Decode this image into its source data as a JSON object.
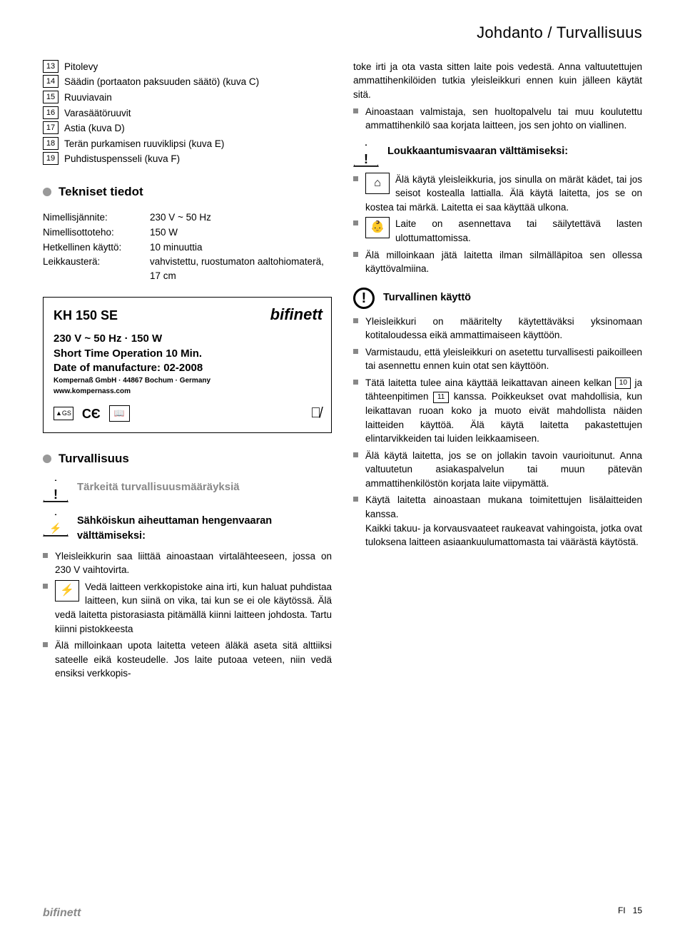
{
  "header": "Johdanto / Turvallisuus",
  "parts": [
    {
      "n": "13",
      "t": "Pitolevy"
    },
    {
      "n": "14",
      "t": "Säädin (portaaton paksuuden säätö) (kuva C)"
    },
    {
      "n": "15",
      "t": "Ruuviavain"
    },
    {
      "n": "16",
      "t": "Varasäätöruuvit"
    },
    {
      "n": "17",
      "t": "Astia (kuva D)"
    },
    {
      "n": "18",
      "t": "Terän purkamisen ruuviklipsi (kuva E)"
    },
    {
      "n": "19",
      "t": "Puhdistuspensseli (kuva F)"
    }
  ],
  "tech_head": "Tekniset tiedot",
  "specs": [
    {
      "l": "Nimellisjännite:",
      "v": "230 V ~ 50 Hz"
    },
    {
      "l": "Nimellisottoteho:",
      "v": "150 W"
    },
    {
      "l": "Hetkellinen käyttö:",
      "v": "10 minuuttia"
    },
    {
      "l": "Leikkausterä:",
      "v": "vahvistettu, ruostumaton aaltohiomaterä, 17 cm"
    }
  ],
  "plate": {
    "model": "KH 150 SE",
    "brand": "bifinett",
    "l1": "230 V ~ 50 Hz · 150 W",
    "l2": "Short Time Operation 10 Min.",
    "l3": "Date of manufacture: 02-2008",
    "l4": "Kompernaß GmbH · 44867 Bochum · Germany",
    "l5": "www.kompernass.com"
  },
  "safety_head": "Turvallisuus",
  "sub1": "Tärkeitä turvallisuusmääräyksiä",
  "sub2": "Sähköiskun aiheuttaman hengenvaaran välttämiseksi:",
  "left_bullets": [
    "Yleisleikkurin saa liittää ainoastaan virtalähteeseen, jossa on 230 V vaihtovirta.",
    "Vedä laitteen verkkopistoke aina irti, kun haluat puhdistaa laitteen, kun siinä on vika, tai kun se ei ole käytössä. Älä vedä laitetta pistorasiasta pitämällä kiinni laitteen johdosta. Tartu kiinni pistokkeesta",
    "Älä milloinkaan upota laitetta veteen äläkä aseta sitä alttiiksi sateelle eikä kosteudelle. Jos laite putoaa veteen, niin vedä ensiksi verkkopis-"
  ],
  "right_top": [
    "toke irti ja ota vasta sitten laite pois vedestä. Anna valtuutettujen ammattihenkilöiden tutkia yleisleikkuri ennen kuin jälleen käytät sitä.",
    "Ainoastaan valmistaja, sen huoltopalvelu tai muu koulutettu ammattihenkilö saa korjata laitteen, jos sen johto on viallinen."
  ],
  "injury_head": "Loukkaantumisvaaran välttämiseksi:",
  "injury": [
    "Älä käytä yleisleikkuria, jos sinulla on märät kädet, tai jos seisot kostealla lattialla. Älä käytä laitetta, jos se on kostea tai märkä. Laitetta ei saa käyttää ulkona.",
    "Laite on asennettava tai säilytettävä lasten ulottumattomissa.",
    "Älä milloinkaan jätä laitetta ilman silmälläpitoa sen ollessa käyttövalmiina."
  ],
  "safe_use_head": "Turvallinen käyttö",
  "safe_use": [
    "Yleisleikkuri on määritelty käytettäväksi yksinomaan kotitaloudessa eikä ammattimaiseen käyttöön.",
    "Varmistaudu, että yleisleikkuri on asetettu turvallisesti paikoilleen tai asennettu ennen kuin otat sen käyttöön.",
    "Tätä laitetta tulee aina käyttää leikattavan aineen kelkan |10| ja tähteenpitimen |11| kanssa. Poikkeukset ovat mahdollisia, kun leikattavan ruoan koko ja muoto eivät mahdollista näiden laitteiden käyttöä. Älä käytä laitetta pakastettujen elintarvikkeiden tai luiden leikkaamiseen.",
    "Älä käytä laitetta, jos se on jollakin tavoin vaurioitunut. Anna valtuutetun asiakaspalvelun tai muun pätevän ammattihenkilöstön korjata laite viipymättä.",
    "Käytä laitetta ainoastaan mukana toimitettujen lisälaitteiden kanssa.\nKaikki takuu- ja korvausvaateet raukeavat vahingoista, jotka ovat tuloksena laitteen asiaankuulumattomasta tai väärästä käytöstä."
  ],
  "ref10": "10",
  "ref11": "11",
  "footer": {
    "brand": "bifinett",
    "pg": "FI",
    "num": "15"
  }
}
